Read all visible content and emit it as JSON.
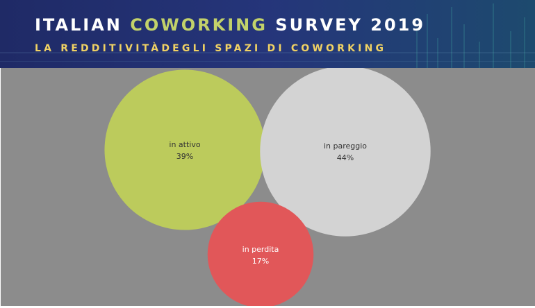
{
  "header": {
    "title_part1": "ITALIAN ",
    "title_accent": "COWORKING",
    "title_part2": " SURVEY 2019",
    "subtitle": "LA REDDITIVITÀDEGLI SPAZI DI COWORKING",
    "title_color": "#ffffff",
    "accent_color": "#c3d26a",
    "subtitle_color": "#f0d264",
    "background_color": "#232f6e"
  },
  "chart_data": {
    "type": "bubble",
    "title": "",
    "unit": "%",
    "background": "#8c8c8c",
    "bubbles": [
      {
        "category": "in attivo",
        "value": 39,
        "value_label": "39%",
        "color": "#bccb5c",
        "text_color": "#333333"
      },
      {
        "category": "in pareggio",
        "value": 44,
        "value_label": "44%",
        "color": "#d3d3d3",
        "text_color": "#333333"
      },
      {
        "category": "in perdita",
        "value": 17,
        "value_label": "17%",
        "color": "#e15759",
        "text_color": "#ffffff"
      }
    ]
  }
}
